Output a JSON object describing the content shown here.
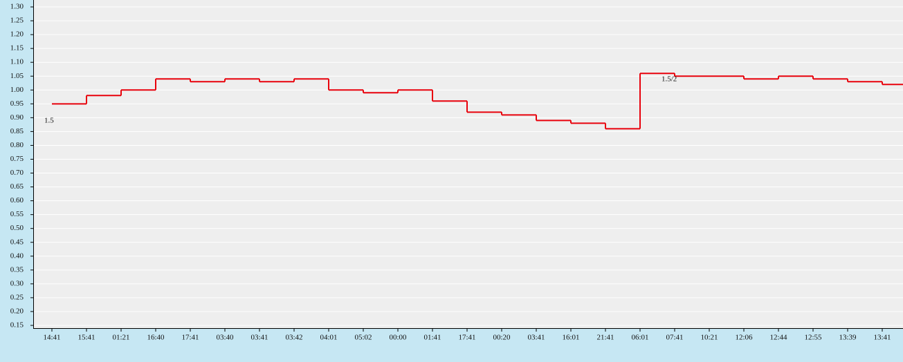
{
  "chart_data": {
    "type": "step",
    "categories": [
      "14:41",
      "15:41",
      "01:21",
      "16:40",
      "17:41",
      "03:40",
      "03:41",
      "03:42",
      "04:01",
      "05:02",
      "00:00",
      "01:41",
      "17:41",
      "00:20",
      "03:41",
      "16:01",
      "21:41",
      "06:01",
      "07:41",
      "10:21",
      "12:06",
      "12:44",
      "12:55",
      "13:39",
      "13:41"
    ],
    "series": [
      {
        "color": "#e8000b",
        "values": [
          0.95,
          0.98,
          1.0,
          1.04,
          1.03,
          1.04,
          1.03,
          1.04,
          1.0,
          0.99,
          1.0,
          0.96,
          0.92,
          0.91,
          0.89,
          0.88,
          0.86,
          1.06,
          1.05,
          1.05,
          1.04,
          1.05,
          1.04,
          1.03,
          1.02
        ]
      }
    ],
    "annotations": [
      "1.5",
      "1.5/2"
    ],
    "ylim": [
      0.14,
      1.325
    ],
    "yticks": [
      0.15,
      {
        "value": 0.2,
        "label": "0.20"
      },
      0.25,
      {
        "value": 0.3,
        "label": "0.30"
      },
      0.35,
      {
        "value": 0.4,
        "label": "0.40"
      },
      0.45,
      {
        "value": 0.5,
        "label": "0.50"
      },
      0.55,
      {
        "value": 0.6,
        "label": "0.60"
      },
      0.65,
      {
        "value": 0.7,
        "label": "0.70"
      },
      0.75,
      {
        "value": 0.8,
        "label": "0.80"
      },
      0.85,
      {
        "value": 0.9,
        "label": "0.90"
      },
      0.95,
      {
        "value": 1.0,
        "label": "1.00"
      },
      1.05,
      {
        "value": 1.1,
        "label": "1.10"
      },
      1.15,
      {
        "value": 1.2,
        "label": "1.20"
      },
      1.25,
      {
        "value": 1.3,
        "label": "1.30"
      }
    ],
    "grid": true
  }
}
